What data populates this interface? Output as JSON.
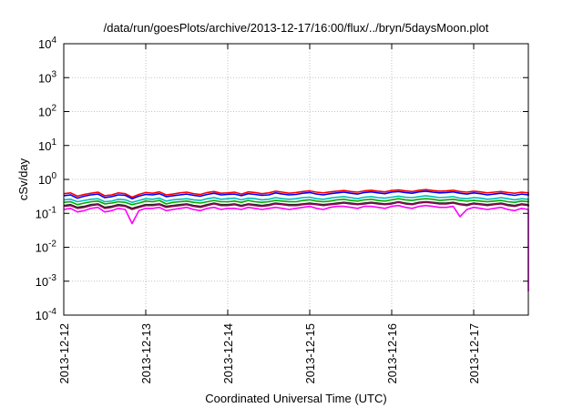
{
  "chart_data": {
    "type": "line",
    "title": "/data/run/goesPlots/archive/2013-12-17/16:00/flux/../bryn/5daysMoon.plot",
    "xlabel": "Coordinated Universal Time (UTC)",
    "ylabel": "cSv/day",
    "x_tick_labels": [
      "2013-12-12",
      "2013-12-13",
      "2013-12-14",
      "2013-12-15",
      "2013-12-16",
      "2013-12-17"
    ],
    "y_ticks": [
      {
        "base": "10",
        "exp": "4",
        "value": 10000
      },
      {
        "base": "10",
        "exp": "3",
        "value": 1000
      },
      {
        "base": "10",
        "exp": "2",
        "value": 100
      },
      {
        "base": "10",
        "exp": "1",
        "value": 10
      },
      {
        "base": "10",
        "exp": "0",
        "value": 1
      },
      {
        "base": "10",
        "exp": "-1",
        "value": 0.1
      },
      {
        "base": "10",
        "exp": "-2",
        "value": 0.01
      },
      {
        "base": "10",
        "exp": "-3",
        "value": 0.001
      },
      {
        "base": "10",
        "exp": "-4",
        "value": 0.0001
      }
    ],
    "x_range": [
      "2013-12-12T00:00",
      "2013-12-17T16:00"
    ],
    "y_scale": "log",
    "ylim": [
      0.0001,
      10000
    ],
    "grid": true,
    "x_step_hours": 2,
    "series": [
      {
        "color": "#ff0000",
        "values": [
          0.38,
          0.4,
          0.32,
          0.36,
          0.39,
          0.42,
          0.33,
          0.35,
          0.4,
          0.38,
          0.3,
          0.36,
          0.41,
          0.39,
          0.43,
          0.35,
          0.37,
          0.4,
          0.42,
          0.38,
          0.36,
          0.41,
          0.44,
          0.39,
          0.4,
          0.42,
          0.37,
          0.43,
          0.41,
          0.38,
          0.4,
          0.45,
          0.42,
          0.39,
          0.41,
          0.44,
          0.46,
          0.42,
          0.4,
          0.43,
          0.45,
          0.47,
          0.44,
          0.42,
          0.46,
          0.48,
          0.45,
          0.43,
          0.47,
          0.49,
          0.46,
          0.44,
          0.48,
          0.5,
          0.47,
          0.45,
          0.46,
          0.48,
          0.44,
          0.42,
          0.45,
          0.43,
          0.4,
          0.42,
          0.44,
          0.41,
          0.39,
          0.42,
          0.4,
          0.38,
          0.41,
          0.43
        ]
      },
      {
        "color": "#0000ff",
        "values": [
          0.33,
          0.35,
          0.28,
          0.32,
          0.35,
          0.37,
          0.29,
          0.31,
          0.35,
          0.34,
          0.27,
          0.32,
          0.36,
          0.35,
          0.38,
          0.31,
          0.33,
          0.35,
          0.37,
          0.34,
          0.32,
          0.36,
          0.39,
          0.35,
          0.36,
          0.37,
          0.33,
          0.38,
          0.36,
          0.34,
          0.35,
          0.4,
          0.37,
          0.35,
          0.36,
          0.39,
          0.41,
          0.37,
          0.35,
          0.38,
          0.4,
          0.42,
          0.39,
          0.37,
          0.41,
          0.43,
          0.4,
          0.38,
          0.42,
          0.44,
          0.41,
          0.39,
          0.43,
          0.45,
          0.42,
          0.4,
          0.41,
          0.43,
          0.39,
          0.37,
          0.4,
          0.38,
          0.35,
          0.37,
          0.39,
          0.36,
          0.34,
          0.37,
          0.35,
          0.33,
          0.36,
          0.38
        ]
      },
      {
        "color": "#00bbbb",
        "values": [
          0.25,
          0.26,
          0.22,
          0.24,
          0.26,
          0.27,
          0.22,
          0.23,
          0.26,
          0.25,
          0.21,
          0.24,
          0.27,
          0.26,
          0.28,
          0.23,
          0.25,
          0.26,
          0.27,
          0.25,
          0.24,
          0.27,
          0.29,
          0.26,
          0.27,
          0.28,
          0.25,
          0.28,
          0.27,
          0.25,
          0.26,
          0.29,
          0.27,
          0.26,
          0.27,
          0.29,
          0.3,
          0.27,
          0.26,
          0.28,
          0.3,
          0.31,
          0.29,
          0.27,
          0.3,
          0.31,
          0.29,
          0.28,
          0.3,
          0.32,
          0.3,
          0.29,
          0.31,
          0.33,
          0.31,
          0.29,
          0.3,
          0.31,
          0.28,
          0.27,
          0.29,
          0.28,
          0.26,
          0.27,
          0.29,
          0.27,
          0.25,
          0.27,
          0.26,
          0.25,
          0.27,
          0.28
        ]
      },
      {
        "color": "#00aa00",
        "values": [
          0.21,
          0.22,
          0.18,
          0.2,
          0.22,
          0.23,
          0.19,
          0.2,
          0.22,
          0.21,
          0.18,
          0.2,
          0.23,
          0.22,
          0.24,
          0.19,
          0.21,
          0.22,
          0.23,
          0.21,
          0.2,
          0.22,
          0.24,
          0.22,
          0.22,
          0.23,
          0.21,
          0.24,
          0.22,
          0.21,
          0.22,
          0.24,
          0.23,
          0.22,
          0.22,
          0.24,
          0.25,
          0.23,
          0.22,
          0.23,
          0.25,
          0.26,
          0.24,
          0.23,
          0.25,
          0.26,
          0.24,
          0.23,
          0.25,
          0.27,
          0.25,
          0.24,
          0.26,
          0.27,
          0.26,
          0.24,
          0.25,
          0.26,
          0.24,
          0.23,
          0.24,
          0.23,
          0.22,
          0.23,
          0.24,
          0.22,
          0.21,
          0.23,
          0.22,
          0.21,
          0.22,
          0.24
        ]
      },
      {
        "color": "#222222",
        "values": [
          0.17,
          0.18,
          0.15,
          0.16,
          0.18,
          0.19,
          0.15,
          0.16,
          0.18,
          0.17,
          0.14,
          0.16,
          0.18,
          0.18,
          0.19,
          0.16,
          0.17,
          0.18,
          0.19,
          0.17,
          0.16,
          0.18,
          0.2,
          0.18,
          0.18,
          0.19,
          0.17,
          0.19,
          0.18,
          0.17,
          0.18,
          0.2,
          0.19,
          0.18,
          0.18,
          0.19,
          0.2,
          0.19,
          0.18,
          0.19,
          0.2,
          0.21,
          0.2,
          0.19,
          0.2,
          0.21,
          0.2,
          0.19,
          0.2,
          0.22,
          0.2,
          0.19,
          0.21,
          0.22,
          0.21,
          0.2,
          0.2,
          0.21,
          0.19,
          0.18,
          0.2,
          0.19,
          0.18,
          0.19,
          0.2,
          0.18,
          0.17,
          0.19,
          0.18,
          0.17,
          0.18,
          0.19
        ]
      },
      {
        "color": "#8b0a50",
        "values": [
          0.16,
          0.17,
          0.14,
          0.15,
          0.17,
          0.18,
          0.14,
          0.15,
          0.17,
          0.16,
          0.13,
          0.15,
          0.17,
          0.17,
          0.18,
          0.15,
          0.16,
          0.17,
          0.18,
          0.16,
          0.15,
          0.17,
          0.19,
          0.17,
          0.17,
          0.18,
          0.16,
          0.18,
          0.17,
          0.16,
          0.17,
          0.19,
          0.18,
          0.17,
          0.17,
          0.18,
          0.19,
          0.18,
          0.17,
          0.18,
          0.19,
          0.2,
          0.19,
          0.18,
          0.19,
          0.2,
          0.19,
          0.18,
          0.19,
          0.21,
          0.19,
          0.18,
          0.2,
          0.21,
          0.2,
          0.19,
          0.19,
          0.2,
          0.18,
          0.17,
          0.19,
          0.18,
          0.17,
          0.18,
          0.19,
          0.17,
          0.16,
          0.18,
          0.17,
          0.16,
          0.17,
          0.18
        ]
      },
      {
        "color": "#ff00ff",
        "values": [
          0.13,
          0.14,
          0.11,
          0.12,
          0.14,
          0.15,
          0.11,
          0.12,
          0.14,
          0.13,
          0.05,
          0.12,
          0.14,
          0.14,
          0.15,
          0.12,
          0.13,
          0.14,
          0.15,
          0.13,
          0.12,
          0.14,
          0.15,
          0.13,
          0.14,
          0.14,
          0.13,
          0.15,
          0.14,
          0.13,
          0.14,
          0.15,
          0.14,
          0.13,
          0.14,
          0.15,
          0.16,
          0.14,
          0.13,
          0.15,
          0.16,
          0.16,
          0.15,
          0.14,
          0.16,
          0.16,
          0.15,
          0.14,
          0.16,
          0.17,
          0.15,
          0.14,
          0.16,
          0.17,
          0.16,
          0.15,
          0.15,
          0.16,
          0.08,
          0.13,
          0.15,
          0.14,
          0.13,
          0.14,
          0.15,
          0.13,
          0.12,
          0.14,
          0.13,
          0.11,
          0.13,
          0.0005
        ]
      }
    ]
  }
}
